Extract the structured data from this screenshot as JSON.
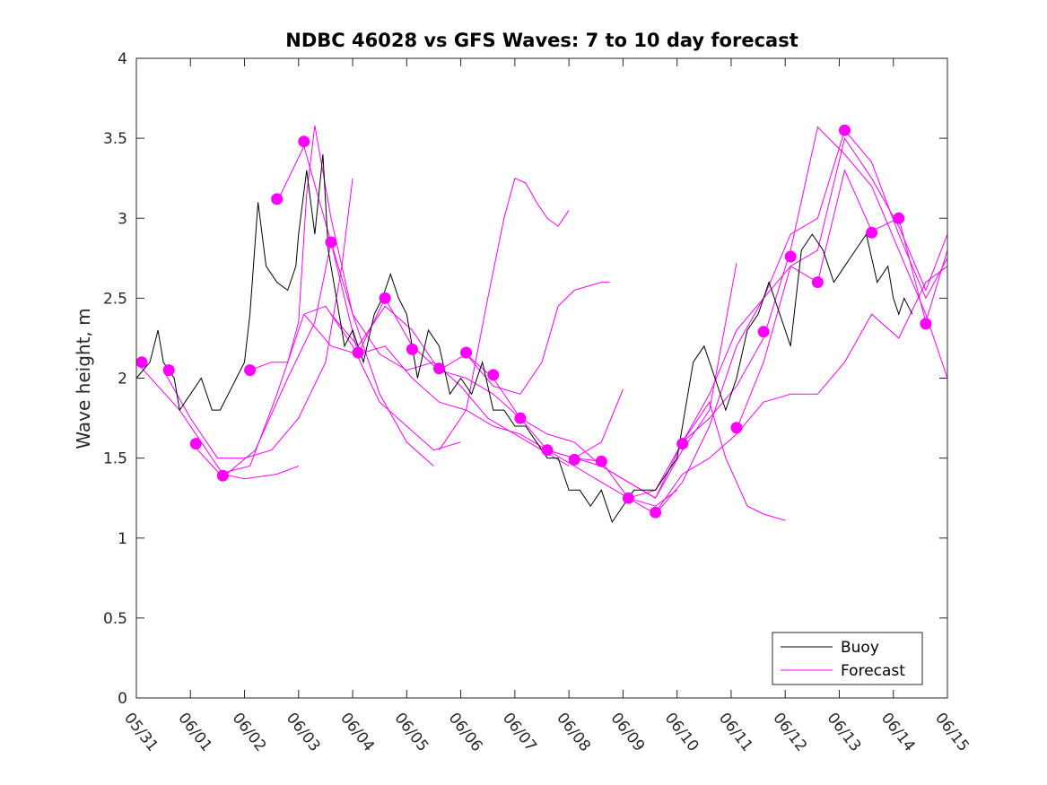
{
  "chart_data": {
    "type": "line",
    "title": "NDBC 46028 vs GFS Waves: 7 to 10 day forecast",
    "xlabel": "",
    "ylabel": "Wave height, m",
    "ylim": [
      0,
      4
    ],
    "yticks": [
      "0",
      "0.5",
      "1",
      "1.5",
      "2",
      "2.5",
      "3",
      "3.5",
      "4"
    ],
    "xlim_days": [
      0,
      15
    ],
    "xticks": [
      "05/31",
      "06/01",
      "06/02",
      "06/03",
      "06/04",
      "06/05",
      "06/06",
      "06/07",
      "06/08",
      "06/09",
      "06/10",
      "06/11",
      "06/12",
      "06/13",
      "06/14",
      "06/15"
    ],
    "colors": {
      "buoy": "#000000",
      "forecast": "#ff00ff",
      "axis": "#262626"
    },
    "legend": {
      "position": "bottom-right",
      "entries": [
        "Buoy",
        "Forecast"
      ]
    },
    "buoy": {
      "name": "Buoy",
      "x": [
        0,
        0.25,
        0.4,
        0.5,
        0.7,
        0.8,
        1,
        1.2,
        1.4,
        1.55,
        1.7,
        1.85,
        2,
        2.1,
        2.25,
        2.4,
        2.6,
        2.8,
        2.95,
        3.0,
        3.15,
        3.3,
        3.45,
        3.55,
        3.7,
        3.85,
        4.0,
        4.2,
        4.4,
        4.55,
        4.7,
        4.85,
        5.0,
        5.2,
        5.4,
        5.6,
        5.8,
        6.0,
        6.2,
        6.4,
        6.6,
        6.8,
        7.0,
        7.2,
        7.4,
        7.6,
        7.8,
        8.0,
        8.2,
        8.4,
        8.6,
        8.8,
        9.0,
        9.2,
        9.4,
        9.6,
        9.8,
        10.0,
        10.15,
        10.3,
        10.5,
        10.7,
        10.9,
        11.1,
        11.3,
        11.5,
        11.7,
        11.9,
        12.1,
        12.3,
        12.5,
        12.7,
        12.9,
        13.1,
        13.3,
        13.5,
        13.7,
        13.9,
        14.0,
        14.1,
        14.2,
        14.35
      ],
      "y": [
        2.0,
        2.1,
        2.3,
        2.1,
        2.0,
        1.8,
        1.9,
        2.0,
        1.8,
        1.8,
        1.9,
        2.0,
        2.1,
        2.4,
        3.1,
        2.7,
        2.6,
        2.55,
        2.7,
        2.9,
        3.3,
        2.9,
        3.4,
        2.8,
        2.5,
        2.2,
        2.3,
        2.1,
        2.4,
        2.5,
        2.65,
        2.5,
        2.4,
        2.0,
        2.3,
        2.2,
        1.9,
        2.0,
        1.9,
        2.1,
        1.8,
        1.8,
        1.7,
        1.7,
        1.6,
        1.5,
        1.5,
        1.3,
        1.3,
        1.2,
        1.3,
        1.1,
        1.2,
        1.3,
        1.3,
        1.3,
        1.4,
        1.5,
        1.8,
        2.1,
        2.2,
        2.0,
        1.8,
        2.0,
        2.3,
        2.4,
        2.6,
        2.4,
        2.2,
        2.8,
        2.9,
        2.8,
        2.6,
        2.7,
        2.8,
        2.9,
        2.6,
        2.7,
        2.5,
        2.4,
        2.5,
        2.4
      ]
    },
    "forecast_series": [
      {
        "name": "Forecast",
        "x": [
          0,
          0.4,
          0.8,
          1.2,
          1.6,
          2.0,
          2.6,
          3.0
        ],
        "y": [
          2.1,
          1.95,
          1.8,
          1.6,
          1.4,
          1.37,
          1.4,
          1.45
        ]
      },
      {
        "name": "Forecast",
        "x": [
          0.5,
          1.0,
          1.5,
          2.0,
          2.5,
          3.0,
          3.5,
          3.8,
          4.0
        ],
        "y": [
          2.05,
          1.75,
          1.5,
          1.5,
          1.55,
          1.75,
          2.1,
          2.7,
          3.25
        ]
      },
      {
        "name": "Forecast",
        "x": [
          1.0,
          1.6,
          2.2,
          2.8,
          3.3,
          3.6,
          4.0,
          4.5,
          5.0,
          5.5
        ],
        "y": [
          1.6,
          1.38,
          1.55,
          2.0,
          2.35,
          2.85,
          2.4,
          1.9,
          1.6,
          1.45
        ]
      },
      {
        "name": "Forecast",
        "x": [
          1.5,
          2.1,
          2.6,
          3.1,
          3.5,
          4.0,
          4.5,
          5.0,
          5.5,
          6.0
        ],
        "y": [
          1.4,
          1.45,
          1.9,
          2.4,
          2.45,
          2.2,
          1.85,
          1.7,
          1.55,
          1.6
        ]
      },
      {
        "name": "Forecast",
        "x": [
          2.1,
          2.5,
          2.8,
          3.0,
          3.15,
          3.3,
          3.6,
          4.0,
          4.5,
          5.0,
          5.5,
          6.0,
          6.5,
          7.0,
          7.5,
          8.0
        ],
        "y": [
          2.05,
          2.1,
          2.1,
          2.35,
          3.15,
          3.58,
          3.0,
          2.4,
          2.15,
          2.05,
          2.1,
          1.95,
          1.75,
          1.65,
          1.55,
          1.45
        ]
      },
      {
        "name": "Forecast",
        "x": [
          2.6,
          3.1,
          3.6,
          4.1,
          4.6,
          5.1,
          5.6,
          6.1,
          6.6,
          7.1,
          7.6,
          8.1,
          8.6,
          9.0
        ],
        "y": [
          3.1,
          3.45,
          2.85,
          2.15,
          2.5,
          2.2,
          2.05,
          2.15,
          2.0,
          1.75,
          1.55,
          1.5,
          1.6,
          1.93
        ]
      },
      {
        "name": "Forecast",
        "x": [
          3.1,
          3.6,
          4.1,
          4.6,
          5.1,
          5.6,
          6.1,
          6.6,
          7.1,
          7.6,
          8.1,
          8.6,
          9.1,
          9.6,
          10.0
        ],
        "y": [
          2.4,
          2.2,
          2.15,
          2.2,
          2.0,
          1.85,
          1.8,
          1.7,
          1.65,
          1.55,
          1.45,
          1.35,
          1.25,
          1.2,
          1.3
        ]
      },
      {
        "name": "Forecast",
        "x": [
          3.6,
          4.1,
          4.6,
          5.1,
          5.6,
          6.1,
          6.6,
          7.1,
          7.6,
          8.1,
          8.6,
          9.1,
          9.6,
          10.1,
          10.6,
          11.1
        ],
        "y": [
          2.4,
          2.2,
          2.45,
          2.3,
          2.05,
          2.0,
          1.9,
          1.75,
          1.65,
          1.6,
          1.45,
          1.35,
          1.25,
          1.55,
          1.8,
          2.72
        ]
      },
      {
        "name": "Forecast",
        "x": [
          5.6,
          6.1,
          6.5,
          6.8,
          7.0,
          7.2,
          7.4,
          7.6,
          7.8,
          8.0
        ],
        "y": [
          1.55,
          1.8,
          2.5,
          3.0,
          3.25,
          3.22,
          3.1,
          3.0,
          2.95,
          3.05
        ]
      },
      {
        "name": "Forecast",
        "x": [
          6.1,
          6.6,
          7.1,
          7.5,
          7.8,
          8.1,
          8.4,
          8.6,
          8.75
        ],
        "y": [
          2.15,
          1.95,
          1.9,
          2.1,
          2.45,
          2.55,
          2.58,
          2.6,
          2.6
        ]
      },
      {
        "name": "Forecast",
        "x": [
          7.6,
          8.1,
          8.6,
          9.1,
          9.6,
          10.1,
          10.6,
          11.1,
          11.6,
          12.1,
          12.6,
          13.1,
          13.6,
          14.1,
          14.6,
          15.0
        ],
        "y": [
          1.55,
          1.5,
          1.45,
          1.35,
          1.25,
          1.6,
          1.75,
          1.95,
          2.25,
          2.8,
          3.57,
          3.4,
          3.2,
          2.8,
          2.4,
          2.0
        ]
      },
      {
        "name": "Forecast",
        "x": [
          8.1,
          8.6,
          9.1,
          9.6,
          10.1,
          10.6,
          11.1,
          11.6,
          12.1,
          12.6,
          13.1,
          13.6,
          14.1,
          14.6,
          15.0
        ],
        "y": [
          1.5,
          1.48,
          1.25,
          1.15,
          1.35,
          1.7,
          2.2,
          2.5,
          2.9,
          3.0,
          3.55,
          3.35,
          2.9,
          2.5,
          2.75
        ]
      },
      {
        "name": "Forecast",
        "x": [
          9.1,
          9.6,
          10.1,
          10.6,
          10.9,
          11.3,
          11.6,
          12.0
        ],
        "y": [
          1.25,
          1.3,
          1.6,
          1.85,
          1.5,
          1.2,
          1.15,
          1.11
        ]
      },
      {
        "name": "Forecast",
        "x": [
          9.6,
          10.1,
          10.6,
          11.1,
          11.6,
          12.1,
          12.6,
          13.1,
          13.6,
          14.1,
          14.6,
          15.0
        ],
        "y": [
          1.16,
          1.4,
          1.5,
          1.65,
          1.85,
          1.9,
          1.9,
          2.1,
          2.4,
          2.25,
          2.6,
          2.7
        ]
      },
      {
        "name": "Forecast",
        "x": [
          10.1,
          10.6,
          11.1,
          11.6,
          12.1,
          12.6,
          13.1,
          13.6,
          14.1,
          14.6,
          15.0
        ],
        "y": [
          1.6,
          1.9,
          2.3,
          2.5,
          2.7,
          2.8,
          3.5,
          3.25,
          2.95,
          2.55,
          2.9
        ]
      },
      {
        "name": "Forecast",
        "x": [
          11.1,
          11.6,
          12.1,
          12.6,
          13.1,
          13.6,
          14.1,
          14.6,
          15.0
        ],
        "y": [
          1.68,
          2.1,
          2.7,
          2.6,
          3.3,
          2.92,
          3.0,
          2.35,
          2.8
        ]
      }
    ],
    "forecast_markers": {
      "name": "Forecast",
      "x": [
        0.1,
        0.6,
        1.1,
        1.6,
        2.1,
        2.6,
        3.1,
        3.6,
        4.1,
        4.6,
        5.1,
        5.6,
        6.1,
        6.6,
        7.1,
        7.6,
        8.1,
        8.6,
        9.1,
        9.6,
        10.1,
        11.1,
        11.6,
        12.1,
        12.6,
        13.1,
        13.6,
        14.1,
        14.6
      ],
      "y": [
        2.1,
        2.05,
        1.59,
        1.39,
        2.05,
        3.12,
        3.48,
        2.85,
        2.16,
        2.5,
        2.18,
        2.06,
        2.16,
        2.02,
        1.75,
        1.55,
        1.49,
        1.48,
        1.25,
        1.16,
        1.59,
        1.69,
        2.29,
        2.76,
        2.6,
        3.55,
        2.91,
        3.0,
        2.34
      ]
    }
  }
}
